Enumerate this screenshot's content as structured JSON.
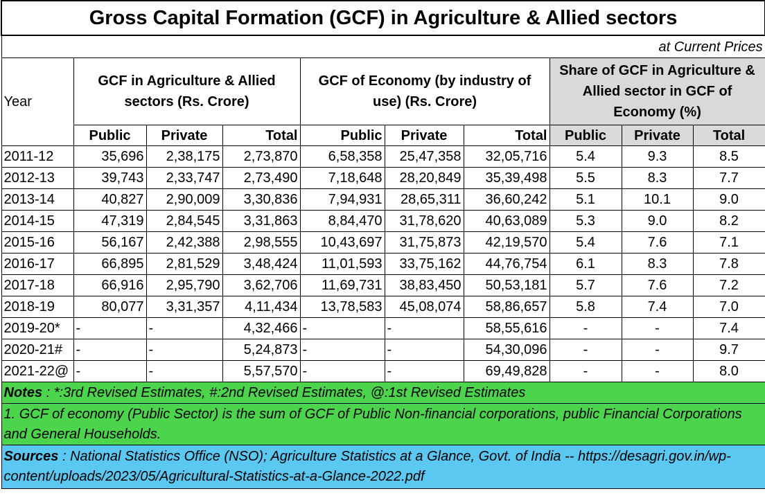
{
  "title": "Gross Capital Formation (GCF) in Agriculture & Allied sectors",
  "subtitle": "at Current Prices",
  "headers": {
    "year": "Year",
    "group1": "GCF in Agriculture & Allied sectors  (Rs. Crore)",
    "group2": "GCF of Economy (by industry of use) (Rs. Crore)",
    "group3": "Share of GCF in Agriculture & Allied sector in GCF of Economy (%)",
    "public": "Public",
    "private": "Private",
    "total": "Total"
  },
  "rows": [
    [
      "2011-12",
      "35,696",
      "2,38,175",
      "2,73,870",
      "6,58,358",
      "25,47,358",
      "32,05,716",
      "5.4",
      "9.3",
      "8.5"
    ],
    [
      "2012-13",
      "39,743",
      "2,33,747",
      "2,73,490",
      "7,18,648",
      "28,20,849",
      "35,39,498",
      "5.5",
      "8.3",
      "7.7"
    ],
    [
      "2013-14",
      "40,827",
      "2,90,009",
      "3,30,836",
      "7,94,931",
      "28,65,311",
      "36,60,242",
      "5.1",
      "10.1",
      "9.0"
    ],
    [
      "2014-15",
      "47,319",
      "2,84,545",
      "3,31,863",
      "8,84,470",
      "31,78,620",
      "40,63,089",
      "5.3",
      "9.0",
      "8.2"
    ],
    [
      "2015-16",
      "56,167",
      "2,42,388",
      "2,98,555",
      "10,43,697",
      "31,75,873",
      "42,19,570",
      "5.4",
      "7.6",
      "7.1"
    ],
    [
      "2016-17",
      "66,895",
      "2,81,529",
      "3,48,424",
      "11,01,593",
      "33,75,162",
      "44,76,754",
      "6.1",
      "8.3",
      "7.8"
    ],
    [
      "2017-18",
      "66,916",
      "2,95,790",
      "3,62,706",
      "11,69,731",
      "38,83,450",
      "50,53,181",
      "5.7",
      "7.6",
      "7.2"
    ],
    [
      "2018-19",
      "80,077",
      "3,31,357",
      "4,11,434",
      "13,78,583",
      "45,08,074",
      "58,86,657",
      "5.8",
      "7.4",
      "7.0"
    ],
    [
      "2019-20*",
      "-",
      "-",
      "4,32,466",
      "-",
      "-",
      "58,55,616",
      "-",
      "-",
      "7.4"
    ],
    [
      "2020-21#",
      "-",
      "-",
      "5,24,873",
      "-",
      "-",
      "54,30,096",
      "-",
      "-",
      "9.7"
    ],
    [
      "2021-22@",
      "-",
      "-",
      "5,57,570",
      "-",
      "-",
      "69,49,828",
      "-",
      "-",
      "8.0"
    ]
  ],
  "notes": {
    "label": "Notes",
    "text": " : *:3rd Revised Estimates, #:2nd Revised Estimates, @:1st Revised Estimates",
    "note1": "1. GCF of  economy (Public Sector) is the sum of GCF of Public Non-financial corporations, public Financial Corporations and General Households."
  },
  "sources": {
    "label": "Sources",
    "text": " : National Statistics Office (NSO); Agriculture Statistics at a Glance, Govt. of India -- https://desagri.gov.in/wp-content/uploads/2023/05/Agricultural-Statistics-at-a-Glance-2022.pdf"
  },
  "colors": {
    "share_header_bg": "#d9d9d9",
    "notes_bg": "#4cd44c",
    "sources_bg": "#5bc8f2"
  }
}
